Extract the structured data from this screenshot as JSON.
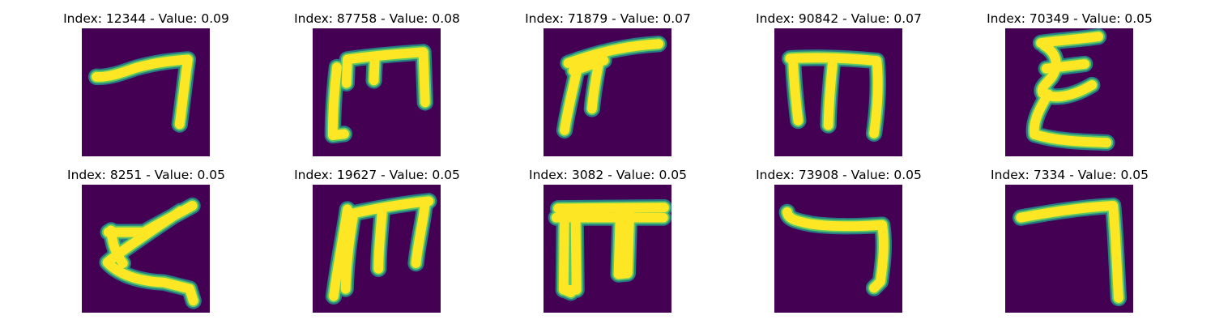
{
  "colors": {
    "background": "#440154",
    "stroke_edge": "#21908d",
    "stroke_mid": "#5ec962",
    "stroke_core": "#fde725"
  },
  "panels": [
    {
      "index": "12344",
      "value": "0.09",
      "title": "Index: 12344 - Value: 0.09",
      "glyph": "hook-seven"
    },
    {
      "index": "87758",
      "value": "0.08",
      "title": "Index: 87758 - Value: 0.08",
      "glyph": "bracket-m"
    },
    {
      "index": "71879",
      "value": "0.07",
      "title": "Index: 71879 - Value: 0.07",
      "glyph": "pi-flag"
    },
    {
      "index": "90842",
      "value": "0.07",
      "title": "Index: 90842 - Value: 0.07",
      "glyph": "m-arch"
    },
    {
      "index": "70349",
      "value": "0.05",
      "title": "Index: 70349 - Value: 0.05",
      "glyph": "xi"
    },
    {
      "index": "8251",
      "value": "0.05",
      "title": "Index: 8251 - Value: 0.05",
      "glyph": "zeta"
    },
    {
      "index": "19627",
      "value": "0.05",
      "title": "Index: 19627 - Value: 0.05",
      "glyph": "m-arch-2"
    },
    {
      "index": "3082",
      "value": "0.05",
      "title": "Index: 3082 - Value: 0.05",
      "glyph": "pi-block"
    },
    {
      "index": "73908",
      "value": "0.05",
      "title": "Index: 73908 - Value: 0.05",
      "glyph": "hook-low"
    },
    {
      "index": "7334",
      "value": "0.05",
      "title": "Index: 7334 - Value: 0.05",
      "glyph": "seven-tall"
    }
  ]
}
